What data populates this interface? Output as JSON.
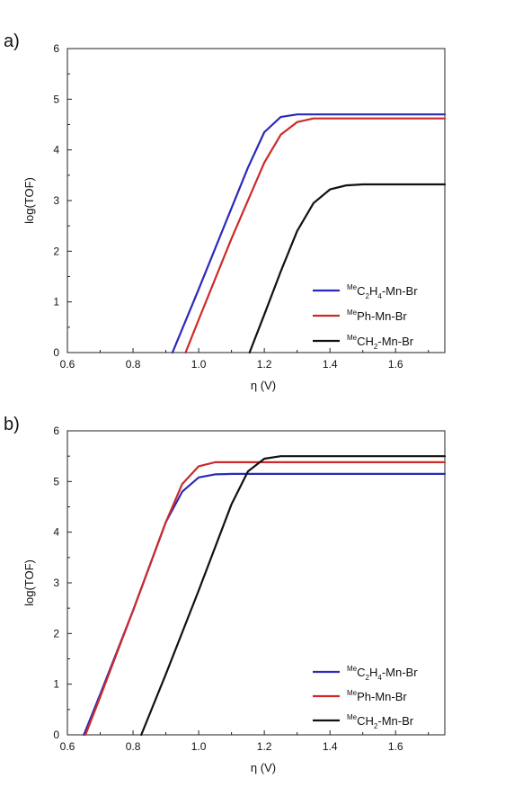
{
  "chart_data": [
    {
      "type": "line",
      "panel_label": "a)",
      "xlabel": "η (V)",
      "ylabel": "log(TOF)",
      "xlim": [
        0.6,
        1.75
      ],
      "ylim": [
        0,
        6
      ],
      "xticks": [
        0.6,
        0.8,
        1.0,
        1.2,
        1.4,
        1.6
      ],
      "xtick_labels": [
        "0.6",
        "0.8",
        "1.0",
        "1.2",
        "1.4",
        "1.6"
      ],
      "yticks": [
        0,
        1,
        2,
        3,
        4,
        5,
        6
      ],
      "ytick_labels": [
        "0",
        "1",
        "2",
        "3",
        "4",
        "5",
        "6"
      ],
      "grid": false,
      "legend_position": "bottom-right",
      "series": [
        {
          "name": "MeC2H4-Mn-Br",
          "legend_sup": "Me",
          "legend_parts": [
            {
              "t": "C",
              "sub": "2"
            },
            {
              "t": "H",
              "sub": "4"
            },
            {
              "t": "-Mn-Br",
              "sub": ""
            }
          ],
          "color": "#2a2ab8",
          "x": [
            0.92,
            1.0,
            1.1,
            1.15,
            1.2,
            1.25,
            1.3,
            1.4,
            1.75
          ],
          "y": [
            0,
            1.25,
            2.85,
            3.65,
            4.35,
            4.65,
            4.7,
            4.7,
            4.7
          ]
        },
        {
          "name": "MePh-Mn-Br",
          "legend_sup": "Me",
          "legend_parts": [
            {
              "t": "Ph-Mn-Br",
              "sub": ""
            }
          ],
          "color": "#cc2a2a",
          "x": [
            0.96,
            1.0,
            1.1,
            1.2,
            1.25,
            1.3,
            1.35,
            1.4,
            1.75
          ],
          "y": [
            0,
            0.65,
            2.25,
            3.75,
            4.3,
            4.55,
            4.62,
            4.62,
            4.62
          ]
        },
        {
          "name": "MeCH2-Mn-Br",
          "legend_sup": "Me",
          "legend_parts": [
            {
              "t": "CH",
              "sub": "2"
            },
            {
              "t": "-Mn-Br",
              "sub": ""
            }
          ],
          "color": "#111111",
          "x": [
            1.155,
            1.2,
            1.25,
            1.3,
            1.35,
            1.4,
            1.45,
            1.5,
            1.75
          ],
          "y": [
            0,
            0.75,
            1.6,
            2.4,
            2.95,
            3.22,
            3.3,
            3.32,
            3.32
          ]
        }
      ]
    },
    {
      "type": "line",
      "panel_label": "b)",
      "xlabel": "η (V)",
      "ylabel": "log(TOF)",
      "xlim": [
        0.6,
        1.75
      ],
      "ylim": [
        0,
        6
      ],
      "xticks": [
        0.6,
        0.8,
        1.0,
        1.2,
        1.4,
        1.6
      ],
      "xtick_labels": [
        "0.6",
        "0.8",
        "1.0",
        "1.2",
        "1.4",
        "1.6"
      ],
      "yticks": [
        0,
        1,
        2,
        3,
        4,
        5,
        6
      ],
      "ytick_labels": [
        "0",
        "1",
        "2",
        "3",
        "4",
        "5",
        "6"
      ],
      "grid": false,
      "legend_position": "bottom-right",
      "series": [
        {
          "name": "MeC2H4-Mn-Br",
          "legend_sup": "Me",
          "legend_parts": [
            {
              "t": "C",
              "sub": "2"
            },
            {
              "t": "H",
              "sub": "4"
            },
            {
              "t": "-Mn-Br",
              "sub": ""
            }
          ],
          "color": "#2a2ab8",
          "x": [
            0.65,
            0.7,
            0.8,
            0.9,
            0.95,
            1.0,
            1.05,
            1.1,
            1.75
          ],
          "y": [
            0,
            0.8,
            2.45,
            4.2,
            4.8,
            5.08,
            5.14,
            5.15,
            5.15
          ]
        },
        {
          "name": "MePh-Mn-Br",
          "legend_sup": "Me",
          "legend_parts": [
            {
              "t": "Ph-Mn-Br",
              "sub": ""
            }
          ],
          "color": "#cc2a2a",
          "x": [
            0.655,
            0.7,
            0.8,
            0.9,
            0.95,
            1.0,
            1.05,
            1.1,
            1.75
          ],
          "y": [
            0,
            0.75,
            2.45,
            4.2,
            4.95,
            5.3,
            5.38,
            5.38,
            5.38
          ]
        },
        {
          "name": "MeCH2-Mn-Br",
          "legend_sup": "Me",
          "legend_parts": [
            {
              "t": "CH",
              "sub": "2"
            },
            {
              "t": "-Mn-Br",
              "sub": ""
            }
          ],
          "color": "#111111",
          "x": [
            0.825,
            0.9,
            1.0,
            1.1,
            1.15,
            1.2,
            1.25,
            1.3,
            1.75
          ],
          "y": [
            0,
            1.2,
            2.85,
            4.55,
            5.2,
            5.45,
            5.5,
            5.5,
            5.5
          ]
        }
      ]
    }
  ]
}
